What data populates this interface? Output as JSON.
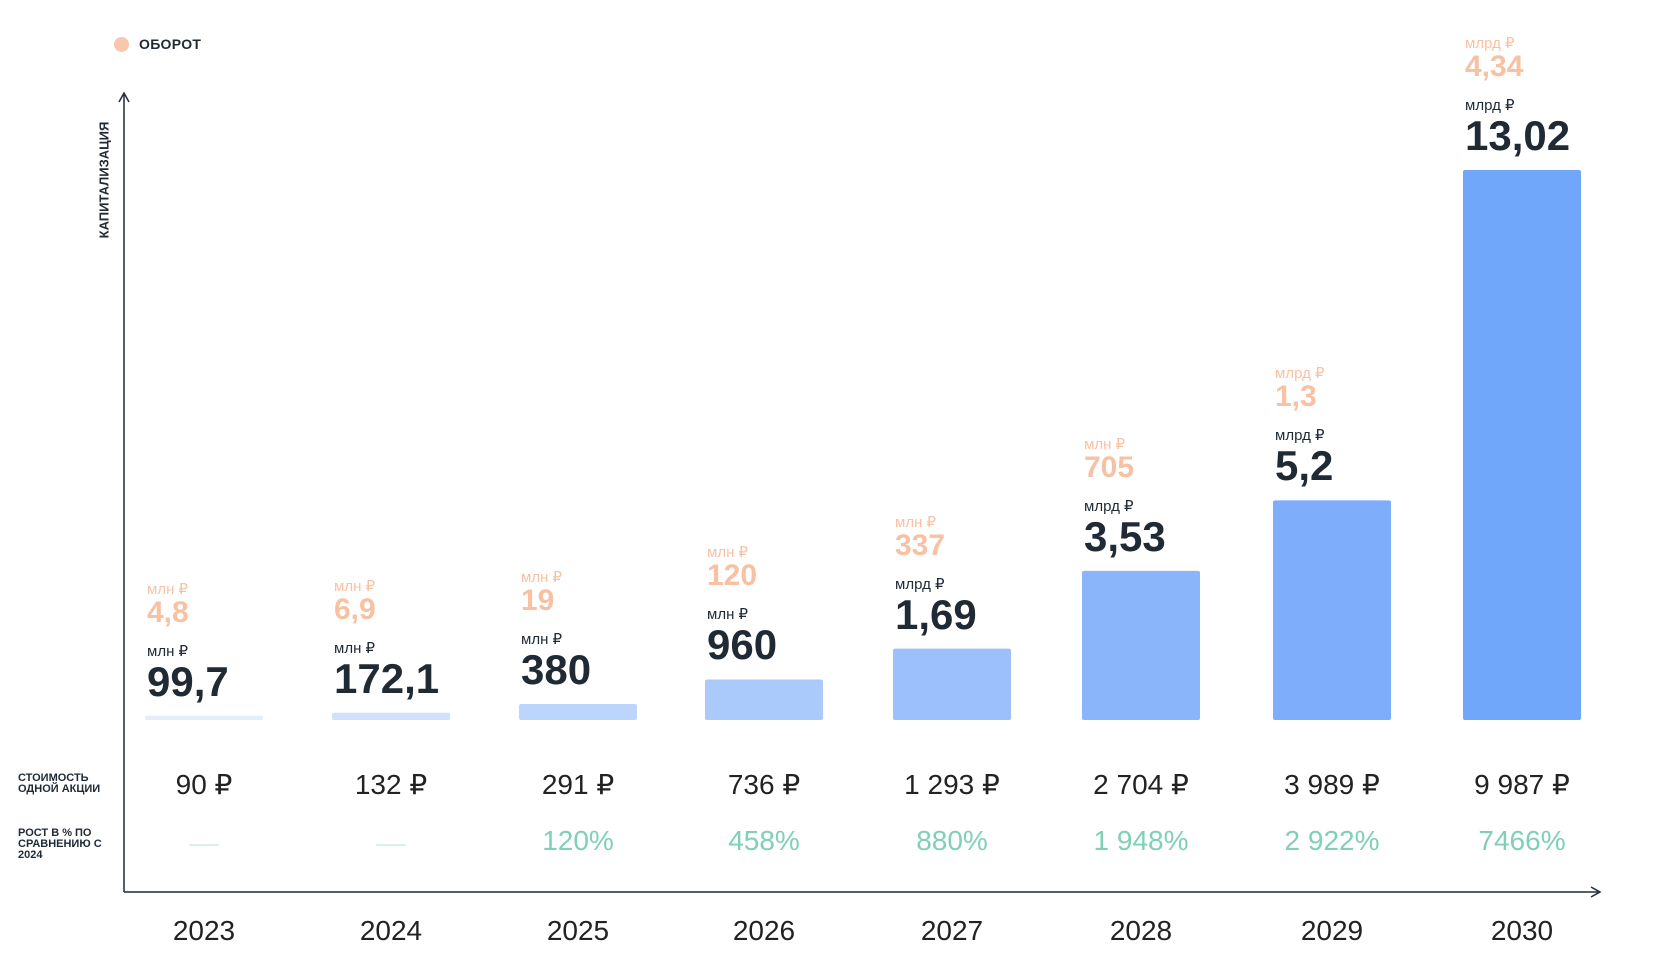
{
  "legend": {
    "label": "ОБОРОТ",
    "color": "#f9c7ad"
  },
  "row_labels": {
    "price": "СТОИМОСТЬ ОДНОЙ АКЦИИ",
    "growth": "РОСТ В % ПО СРАВНЕНИЮ С 2024"
  },
  "chart_data": {
    "type": "bar",
    "ylabel": "КАПИТАЛИЗАЦИЯ",
    "xlabel": "",
    "categories": [
      "2023",
      "2024",
      "2025",
      "2026",
      "2027",
      "2028",
      "2029",
      "2030"
    ],
    "series": [
      {
        "name": "КАПИТАЛИЗАЦИЯ",
        "values": [
          99.7,
          172.1,
          380,
          960,
          1690,
          3530,
          5200,
          13020
        ],
        "units_note": "млн ₽",
        "labels": [
          {
            "unit": "млн ₽",
            "value": "99,7"
          },
          {
            "unit": "млн ₽",
            "value": "172,1"
          },
          {
            "unit": "млн ₽",
            "value": "380"
          },
          {
            "unit": "млн ₽",
            "value": "960"
          },
          {
            "unit": "млрд ₽",
            "value": "1,69"
          },
          {
            "unit": "млрд ₽",
            "value": "3,53"
          },
          {
            "unit": "млрд ₽",
            "value": "5,2"
          },
          {
            "unit": "млрд ₽",
            "value": "13,02"
          }
        ]
      },
      {
        "name": "ОБОРОТ",
        "values": [
          4.8,
          6.9,
          19,
          120,
          337,
          705,
          1300,
          4340
        ],
        "labels": [
          {
            "unit": "млн ₽",
            "value": "4,8"
          },
          {
            "unit": "млн ₽",
            "value": "6,9"
          },
          {
            "unit": "млн ₽",
            "value": "19"
          },
          {
            "unit": "млн ₽",
            "value": "120"
          },
          {
            "unit": "млн ₽",
            "value": "337"
          },
          {
            "unit": "млн ₽",
            "value": "705"
          },
          {
            "unit": "млрд ₽",
            "value": "1,3"
          },
          {
            "unit": "млрд ₽",
            "value": "4,34"
          }
        ]
      }
    ],
    "share_price": [
      "90 ₽",
      "132 ₽",
      "291 ₽",
      "736 ₽",
      "1 293 ₽",
      "2 704 ₽",
      "3 989 ₽",
      "9 987 ₽"
    ],
    "growth_pct": [
      "",
      "",
      "120%",
      "458%",
      "880%",
      "1 948%",
      "2 922%",
      "7466%"
    ],
    "bar_colors": [
      "#e3eefc",
      "#cfe1fc",
      "#bcd5fd",
      "#abcafc",
      "#9cc0fb",
      "#8ab5fb",
      "#7eaefb",
      "#70a7fb"
    ],
    "grid": false
  }
}
